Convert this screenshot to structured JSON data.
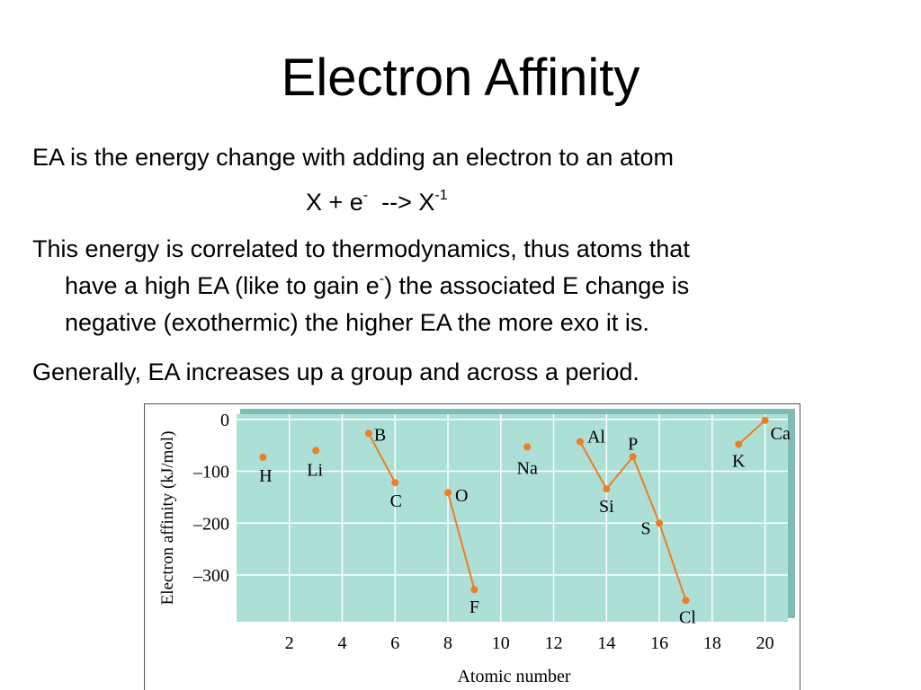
{
  "slide": {
    "title": "Electron Affinity",
    "bullet1": "EA is the energy change with adding an electron to an atom",
    "equation": {
      "lhs": "X + e",
      "lhs_sup": "-",
      "arrow": "  --> X",
      "rhs_sup": "-1"
    },
    "bullet2": {
      "line1": "This energy is correlated to thermodynamics, thus atoms that",
      "line2_a": "have a high EA (like to gain e",
      "line2_sup": "-",
      "line2_b": ") the associated E change is",
      "line3": "negative (exothermic) the higher EA the more exo it is."
    },
    "bullet3": "Generally, EA increases up a group and across a period."
  },
  "chart_data": {
    "type": "line",
    "xlabel": "Atomic number",
    "ylabel": "Electron affinity (kJ/mol)",
    "xlim": [
      0,
      21
    ],
    "ylim": [
      -390,
      10
    ],
    "xticks": [
      2,
      4,
      6,
      8,
      10,
      12,
      14,
      16,
      18,
      20
    ],
    "yticks": [
      0,
      -100,
      -200,
      -300
    ],
    "ytick_labels": [
      "0",
      "–100",
      "–200",
      "–300"
    ],
    "grid": true,
    "colors": {
      "plot_bg": "#acdfd6",
      "grid": "#ffffff",
      "series": "#ef7d24",
      "frame_shadow": "#7fbcb3"
    },
    "points": [
      {
        "z": 1,
        "symbol": "H",
        "ea": -73
      },
      {
        "z": 3,
        "symbol": "Li",
        "ea": -60
      },
      {
        "z": 5,
        "symbol": "B",
        "ea": -27
      },
      {
        "z": 6,
        "symbol": "C",
        "ea": -122
      },
      {
        "z": 8,
        "symbol": "O",
        "ea": -141
      },
      {
        "z": 9,
        "symbol": "F",
        "ea": -328
      },
      {
        "z": 11,
        "symbol": "Na",
        "ea": -53
      },
      {
        "z": 13,
        "symbol": "Al",
        "ea": -43
      },
      {
        "z": 14,
        "symbol": "Si",
        "ea": -134
      },
      {
        "z": 15,
        "symbol": "P",
        "ea": -72
      },
      {
        "z": 16,
        "symbol": "S",
        "ea": -200
      },
      {
        "z": 17,
        "symbol": "Cl",
        "ea": -349
      },
      {
        "z": 19,
        "symbol": "K",
        "ea": -48
      },
      {
        "z": 20,
        "symbol": "Ca",
        "ea": -2
      }
    ],
    "segments": [
      [
        5,
        6
      ],
      [
        8,
        9
      ],
      [
        13,
        14
      ],
      [
        14,
        15
      ],
      [
        15,
        16
      ],
      [
        16,
        17
      ],
      [
        19,
        20
      ]
    ]
  }
}
